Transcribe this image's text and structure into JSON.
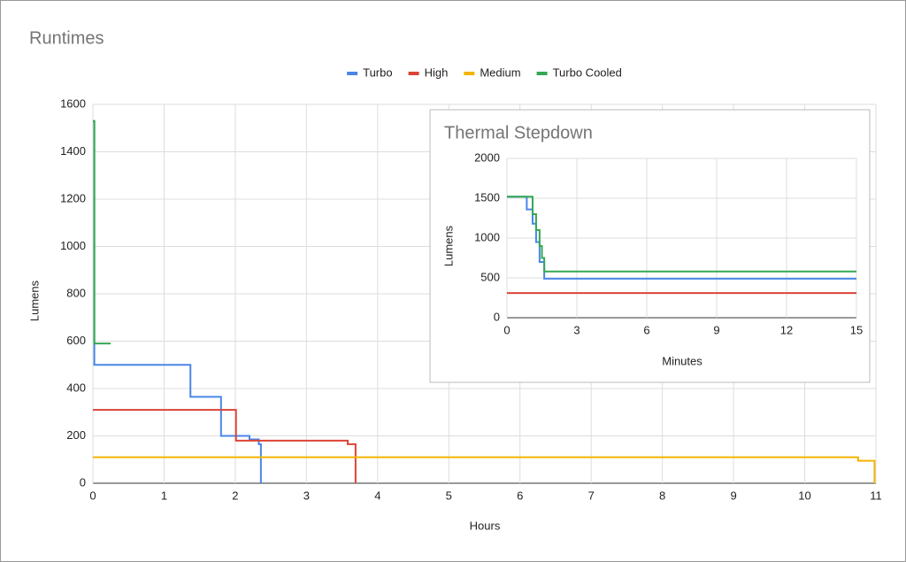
{
  "chart_data": [
    {
      "type": "line",
      "title": "Runtimes",
      "x_label": "Hours",
      "y_label": "Lumens",
      "xlim": [
        0,
        11
      ],
      "xticks": [
        0,
        1,
        2,
        3,
        4,
        5,
        6,
        7,
        8,
        9,
        10,
        11
      ],
      "ylim": [
        0,
        1600
      ],
      "yticks": [
        0,
        200,
        400,
        600,
        800,
        1000,
        1200,
        1400,
        1600
      ],
      "grid": true,
      "legend": "top",
      "series": [
        {
          "name": "Turbo",
          "color": "#4a86e8",
          "x": [
            0,
            0.02,
            0.02,
            1.37,
            1.37,
            1.8,
            1.8,
            2.2,
            2.2,
            2.33,
            2.33,
            2.36,
            2.36
          ],
          "values": [
            1530,
            1530,
            500,
            500,
            365,
            365,
            200,
            200,
            185,
            185,
            165,
            165,
            0
          ]
        },
        {
          "name": "High",
          "color": "#db4437",
          "x": [
            0,
            2.01,
            2.01,
            3.58,
            3.58,
            3.69,
            3.69
          ],
          "values": [
            310,
            310,
            180,
            180,
            165,
            165,
            0
          ]
        },
        {
          "name": "Medium",
          "color": "#f4b400",
          "x": [
            0,
            10.75,
            10.75,
            10.98,
            10.98
          ],
          "values": [
            110,
            110,
            95,
            95,
            0
          ]
        },
        {
          "name": "Turbo Cooled",
          "color": "#34a853",
          "x": [
            0,
            0.02,
            0.02,
            0.25
          ],
          "values": [
            1530,
            1530,
            590,
            590
          ]
        }
      ]
    },
    {
      "type": "line",
      "title": "Thermal Stepdown",
      "x_label": "Minutes",
      "y_label": "Lumens",
      "xlim": [
        0,
        15
      ],
      "xticks": [
        0,
        3,
        6,
        9,
        12,
        15
      ],
      "ylim": [
        0,
        2000
      ],
      "yticks": [
        0,
        500,
        1000,
        1500,
        2000
      ],
      "grid": true,
      "series": [
        {
          "color": "#4a86e8",
          "x": [
            0,
            0.85,
            0.85,
            1.1,
            1.1,
            1.25,
            1.25,
            1.4,
            1.4,
            1.6,
            1.6,
            15
          ],
          "values": [
            1520,
            1520,
            1360,
            1360,
            1180,
            1180,
            950,
            950,
            700,
            700,
            490,
            490
          ]
        },
        {
          "color": "#db4437",
          "x": [
            0,
            15
          ],
          "values": [
            310,
            310
          ]
        },
        {
          "color": "#34a853",
          "x": [
            0,
            1.1,
            1.1,
            1.25,
            1.25,
            1.4,
            1.4,
            1.5,
            1.5,
            1.6,
            1.6,
            15
          ],
          "values": [
            1520,
            1520,
            1300,
            1300,
            1100,
            1100,
            900,
            900,
            750,
            750,
            580,
            580
          ]
        }
      ]
    }
  ]
}
